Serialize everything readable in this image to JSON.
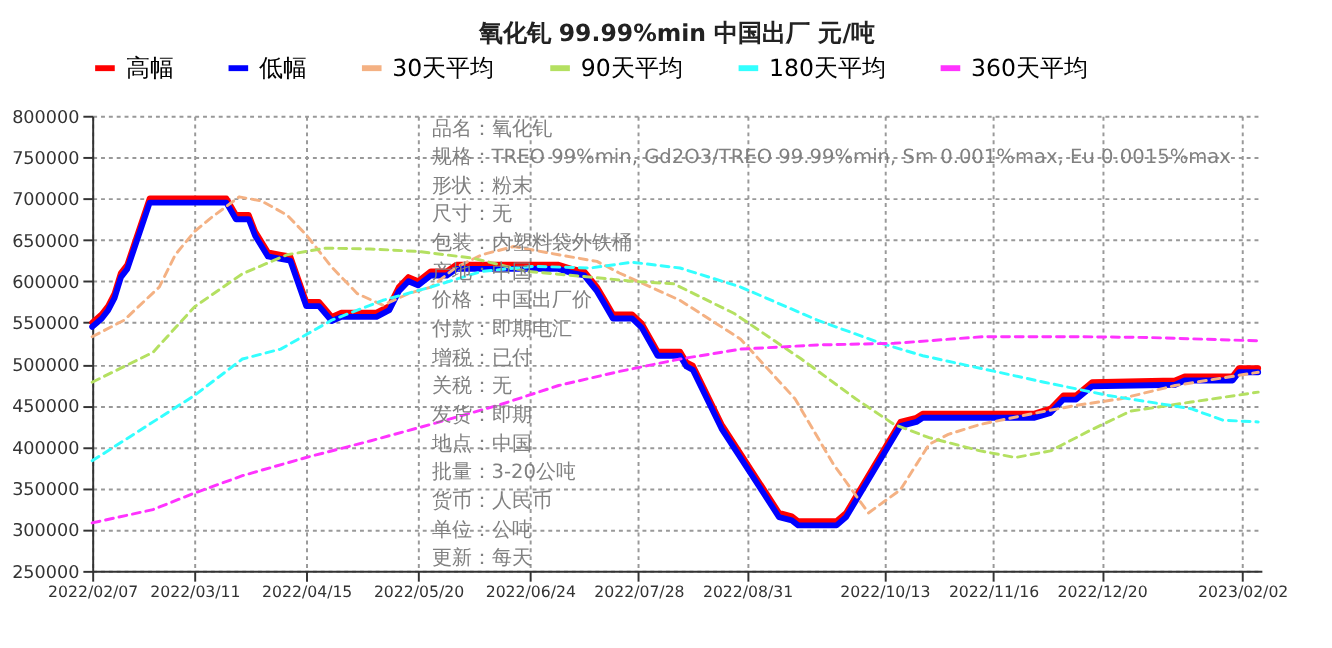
{
  "chart_data": {
    "type": "line",
    "title": "氧化钆 99.99%min 中国出厂 元/吨",
    "xlim": [
      "2022-02-07",
      "2023-02-08"
    ],
    "xticks": [
      {
        "value": "2022-02-07",
        "label": "2022/02/07"
      },
      {
        "value": "2022-03-11",
        "label": "2022/03/11"
      },
      {
        "value": "2022-04-15",
        "label": "2022/04/15"
      },
      {
        "value": "2022-05-20",
        "label": "2022/05/20"
      },
      {
        "value": "2022-06-24",
        "label": "2022/06/24"
      },
      {
        "value": "2022-07-28",
        "label": "2022/07/28"
      },
      {
        "value": "2022-08-31",
        "label": "2022/08/31"
      },
      {
        "value": "2022-10-13",
        "label": "2022/10/13"
      },
      {
        "value": "2022-11-16",
        "label": "2022/11/16"
      },
      {
        "value": "2022-12-20",
        "label": "2022/12/20"
      },
      {
        "value": "2023-02-02",
        "label": "2023/02/02"
      }
    ],
    "ylim": [
      250000,
      800000
    ],
    "yticks": [
      250000,
      300000,
      350000,
      400000,
      450000,
      500000,
      550000,
      600000,
      650000,
      700000,
      750000,
      800000
    ],
    "grid": true,
    "legend": "top",
    "marker": "none",
    "series": [
      {
        "name": "高幅",
        "color": "#ff0000",
        "line_style": "solid",
        "x": [
          "2022-02-07",
          "2022-02-10",
          "2022-02-12",
          "2022-02-14",
          "2022-02-16",
          "2022-02-18",
          "2022-02-25",
          "2022-03-21",
          "2022-03-24",
          "2022-03-28",
          "2022-03-30",
          "2022-04-03",
          "2022-04-07",
          "2022-04-10",
          "2022-04-15",
          "2022-04-19",
          "2022-04-23",
          "2022-04-26",
          "2022-05-07",
          "2022-05-11",
          "2022-05-14",
          "2022-05-17",
          "2022-05-20",
          "2022-05-24",
          "2022-05-29",
          "2022-06-01",
          "2022-07-03",
          "2022-07-07",
          "2022-07-11",
          "2022-07-15",
          "2022-07-17",
          "2022-07-20",
          "2022-07-26",
          "2022-07-29",
          "2022-08-03",
          "2022-08-10",
          "2022-08-12",
          "2022-08-14",
          "2022-08-23",
          "2022-09-10",
          "2022-09-14",
          "2022-09-16",
          "2022-09-28",
          "2022-10-01",
          "2022-10-18",
          "2022-10-23",
          "2022-10-25",
          "2022-11-29",
          "2022-12-04",
          "2022-12-08",
          "2022-12-12",
          "2022-12-17",
          "2023-01-12",
          "2023-01-15",
          "2023-01-30",
          "2023-02-01",
          "2023-02-07"
        ],
        "values": [
          550000,
          560000,
          570000,
          585000,
          610000,
          620000,
          700000,
          700000,
          680000,
          680000,
          660000,
          635000,
          632000,
          630000,
          575000,
          575000,
          557000,
          562000,
          562000,
          570000,
          593000,
          605000,
          600000,
          612000,
          612000,
          620000,
          620000,
          615000,
          612000,
          593000,
          580000,
          560000,
          560000,
          549000,
          515000,
          515000,
          502000,
          498000,
          427000,
          320000,
          316000,
          310000,
          310000,
          320000,
          430000,
          435000,
          440000,
          440000,
          446000,
          462000,
          462000,
          478000,
          480000,
          485000,
          485000,
          495000,
          495000
        ]
      },
      {
        "name": "低幅",
        "color": "#0000ff",
        "line_style": "solid",
        "x": [
          "2022-02-07",
          "2022-02-10",
          "2022-02-12",
          "2022-02-14",
          "2022-02-16",
          "2022-02-18",
          "2022-02-25",
          "2022-03-21",
          "2022-03-24",
          "2022-03-28",
          "2022-03-30",
          "2022-04-03",
          "2022-04-07",
          "2022-04-10",
          "2022-04-15",
          "2022-04-19",
          "2022-04-23",
          "2022-04-26",
          "2022-05-07",
          "2022-05-11",
          "2022-05-14",
          "2022-05-17",
          "2022-05-20",
          "2022-05-24",
          "2022-05-29",
          "2022-06-01",
          "2022-07-03",
          "2022-07-07",
          "2022-07-11",
          "2022-07-15",
          "2022-07-17",
          "2022-07-20",
          "2022-07-26",
          "2022-07-29",
          "2022-08-03",
          "2022-08-10",
          "2022-08-12",
          "2022-08-14",
          "2022-08-23",
          "2022-09-10",
          "2022-09-14",
          "2022-09-16",
          "2022-09-28",
          "2022-10-01",
          "2022-10-18",
          "2022-10-23",
          "2022-10-25",
          "2022-11-29",
          "2022-12-04",
          "2022-12-08",
          "2022-12-12",
          "2022-12-17",
          "2023-01-12",
          "2023-01-15",
          "2023-01-30",
          "2023-02-01",
          "2023-02-07"
        ],
        "values": [
          545000,
          555000,
          565000,
          580000,
          605000,
          615000,
          695000,
          695000,
          675000,
          675000,
          655000,
          630000,
          627000,
          625000,
          570000,
          570000,
          552000,
          557000,
          557000,
          565000,
          588000,
          600000,
          595000,
          607000,
          607000,
          615000,
          615000,
          610000,
          607000,
          588000,
          575000,
          555000,
          555000,
          544000,
          510000,
          510000,
          497000,
          493000,
          422000,
          315000,
          311000,
          305000,
          305000,
          315000,
          425000,
          430000,
          435000,
          435000,
          441000,
          457000,
          457000,
          473000,
          475000,
          480000,
          480000,
          490000,
          490000
        ]
      },
      {
        "name": "30天平均",
        "color": "#f4b183",
        "line_style": "dashed",
        "x": [
          "2022-02-07",
          "2022-02-17",
          "2022-02-28",
          "2022-03-05",
          "2022-03-11",
          "2022-03-16",
          "2022-03-25",
          "2022-04-01",
          "2022-04-09",
          "2022-04-15",
          "2022-04-23",
          "2022-05-01",
          "2022-05-09",
          "2022-05-17",
          "2022-05-24",
          "2022-06-01",
          "2022-06-09",
          "2022-06-19",
          "2022-07-03",
          "2022-07-15",
          "2022-07-22",
          "2022-08-10",
          "2022-08-29",
          "2022-09-15",
          "2022-09-27",
          "2022-10-08",
          "2022-10-18",
          "2022-10-27",
          "2022-11-02",
          "2022-11-12",
          "2022-11-27",
          "2022-12-12",
          "2022-12-26",
          "2023-01-12",
          "2023-02-07"
        ],
        "values": [
          533000,
          553000,
          593000,
          632000,
          660000,
          676000,
          702000,
          697000,
          680000,
          656000,
          617000,
          585000,
          571000,
          585000,
          593000,
          617000,
          632000,
          642000,
          632000,
          624000,
          610000,
          577000,
          530000,
          458000,
          379000,
          320000,
          348000,
          403000,
          415000,
          427000,
          439000,
          450000,
          458000,
          474000,
          490000
        ]
      },
      {
        "name": "90天平均",
        "color": "#b4e061",
        "line_style": "dashed",
        "x": [
          "2022-02-07",
          "2022-02-26",
          "2022-03-11",
          "2022-03-26",
          "2022-04-09",
          "2022-04-21",
          "2022-05-05",
          "2022-05-20",
          "2022-06-06",
          "2022-06-23",
          "2022-07-13",
          "2022-07-26",
          "2022-08-08",
          "2022-08-27",
          "2022-09-17",
          "2022-10-04",
          "2022-10-16",
          "2022-10-27",
          "2022-11-12",
          "2022-11-23",
          "2022-12-04",
          "2022-12-16",
          "2022-12-29",
          "2023-01-17",
          "2023-02-07"
        ],
        "values": [
          478000,
          514000,
          569000,
          609000,
          632000,
          640000,
          639000,
          636000,
          628000,
          612000,
          605000,
          600000,
          597000,
          561000,
          506000,
          458000,
          427000,
          411000,
          395000,
          387000,
          395000,
          419000,
          443000,
          454000,
          466000
        ]
      },
      {
        "name": "180天平均",
        "color": "#33ffff",
        "line_style": "dashed",
        "x": [
          "2022-02-07",
          "2022-02-20",
          "2022-03-11",
          "2022-03-26",
          "2022-04-07",
          "2022-04-23",
          "2022-05-09",
          "2022-05-24",
          "2022-06-09",
          "2022-06-25",
          "2022-07-13",
          "2022-07-26",
          "2022-08-10",
          "2022-08-29",
          "2022-09-22",
          "2022-10-12",
          "2022-10-25",
          "2022-11-13",
          "2022-12-02",
          "2022-12-22",
          "2023-01-17",
          "2023-01-27",
          "2023-02-07"
        ],
        "values": [
          383000,
          415000,
          462000,
          506000,
          518000,
          553000,
          577000,
          593000,
          612000,
          618000,
          616000,
          623000,
          616000,
          593000,
          553000,
          525000,
          510000,
          494000,
          478000,
          462000,
          446000,
          432000,
          430000
        ]
      },
      {
        "name": "360天平均",
        "color": "#ff33ff",
        "line_style": "dashed",
        "x": [
          "2022-02-07",
          "2022-02-26",
          "2022-03-11",
          "2022-03-26",
          "2022-04-15",
          "2022-05-05",
          "2022-05-24",
          "2022-06-14",
          "2022-07-03",
          "2022-07-22",
          "2022-08-10",
          "2022-08-29",
          "2022-09-22",
          "2022-10-16",
          "2022-11-13",
          "2022-12-12",
          "2023-01-04",
          "2023-02-07"
        ],
        "values": [
          308000,
          324000,
          344000,
          365000,
          387000,
          407000,
          427000,
          450000,
          474000,
          491000,
          506000,
          518000,
          523000,
          525000,
          533000,
          533000,
          532000,
          528000
        ]
      }
    ],
    "annotations": [
      "品名：氧化钆",
      "规格：TREO 99%min, Gd2O3/TREO 99.99%min, Sm 0.001%max, Eu 0.0015%max",
      "形状：粉末",
      "尺寸：无",
      "包装：内塑料袋外铁桶",
      "产地：中国",
      "价格：中国出厂价",
      "付款：即期电汇",
      "增税：已付",
      "关税：无",
      "发货：即期",
      "地点：中国",
      "批量：3-20公吨",
      "货币：人民币",
      "单位：公吨",
      "更新：每天"
    ]
  }
}
